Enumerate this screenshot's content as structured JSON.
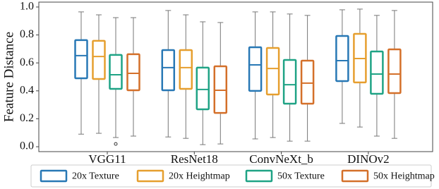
{
  "chart_data": {
    "type": "box",
    "y_label": "Feature Distance",
    "categories": [
      "VGG11",
      "ResNet18",
      "ConvNeXt_b",
      "DINOv2"
    ],
    "ylim": [
      -0.035,
      1.035
    ],
    "yticks": [
      {
        "value": 0,
        "label": "0.0"
      },
      0.2,
      0.4,
      0.6,
      0.8,
      {
        "value": 1,
        "label": "1.0"
      }
    ],
    "series": [
      {
        "name": "20x Texture",
        "color": "#2878b5",
        "values": [
          [
            0.09,
            0.49,
            0.652,
            0.763,
            0.965
          ],
          [
            0.07,
            0.404,
            0.566,
            0.692,
            0.975
          ],
          [
            0.056,
            0.4,
            0.586,
            0.712,
            0.965
          ],
          [
            0.167,
            0.47,
            0.616,
            0.793,
            0.98
          ]
        ]
      },
      {
        "name": "20x Heightmap",
        "color": "#e69f2f",
        "values": [
          [
            0.096,
            0.485,
            0.646,
            0.758,
            0.944
          ],
          [
            0.06,
            0.414,
            0.566,
            0.692,
            0.944
          ],
          [
            0.066,
            0.374,
            0.56,
            0.707,
            0.965
          ],
          [
            0.141,
            0.46,
            0.631,
            0.808,
            0.985
          ]
        ]
      },
      {
        "name": "50x Texture",
        "color": "#1fa385",
        "values": [
          [
            0.066,
            0.414,
            0.515,
            0.657,
            0.924
          ],
          [
            0.015,
            0.268,
            0.41,
            0.566,
            0.894
          ],
          [
            0.04,
            0.308,
            0.444,
            0.621,
            0.95
          ],
          [
            0.076,
            0.379,
            0.52,
            0.682,
            0.94
          ]
        ],
        "outliers": [
          {
            "category": "VGG11",
            "value": 0.02
          }
        ]
      },
      {
        "name": "50x Heightmap",
        "color": "#d4702a",
        "values": [
          [
            0.076,
            0.404,
            0.525,
            0.662,
            0.924
          ],
          [
            0.02,
            0.242,
            0.404,
            0.576,
            0.889
          ],
          [
            0.04,
            0.308,
            0.455,
            0.616,
            0.94
          ],
          [
            0.06,
            0.384,
            0.52,
            0.697,
            0.975
          ]
        ]
      }
    ]
  }
}
